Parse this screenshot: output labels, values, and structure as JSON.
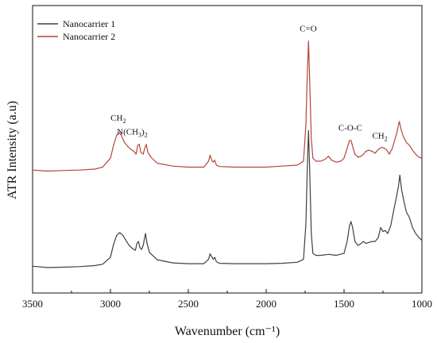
{
  "chart_data": {
    "type": "line",
    "title": "",
    "xlabel": "Wavenumber (cm⁻¹)",
    "ylabel": "ATR Intensity (a.u)",
    "xlim": [
      3500,
      1000
    ],
    "x_reversed": true,
    "xticks": [
      3500,
      3000,
      2500,
      2000,
      1500,
      1000
    ],
    "y_ticks_shown": false,
    "grid": false,
    "legend_position": "top-left",
    "series": [
      {
        "name": "Nanocarrier 1",
        "color": "#404040",
        "points": [
          [
            3500,
            0.135
          ],
          [
            3400,
            0.128
          ],
          [
            3300,
            0.13
          ],
          [
            3200,
            0.133
          ],
          [
            3100,
            0.138
          ],
          [
            3050,
            0.145
          ],
          [
            3000,
            0.18
          ],
          [
            2980,
            0.245
          ],
          [
            2960,
            0.29
          ],
          [
            2940,
            0.305
          ],
          [
            2920,
            0.29
          ],
          [
            2900,
            0.265
          ],
          [
            2880,
            0.24
          ],
          [
            2860,
            0.225
          ],
          [
            2840,
            0.215
          ],
          [
            2830,
            0.25
          ],
          [
            2820,
            0.26
          ],
          [
            2810,
            0.228
          ],
          [
            2800,
            0.22
          ],
          [
            2790,
            0.24
          ],
          [
            2775,
            0.3
          ],
          [
            2765,
            0.25
          ],
          [
            2750,
            0.205
          ],
          [
            2700,
            0.168
          ],
          [
            2600,
            0.152
          ],
          [
            2500,
            0.148
          ],
          [
            2400,
            0.148
          ],
          [
            2370,
            0.17
          ],
          [
            2360,
            0.198
          ],
          [
            2350,
            0.183
          ],
          [
            2340,
            0.17
          ],
          [
            2330,
            0.18
          ],
          [
            2320,
            0.158
          ],
          [
            2300,
            0.15
          ],
          [
            2200,
            0.148
          ],
          [
            2100,
            0.148
          ],
          [
            2000,
            0.148
          ],
          [
            1900,
            0.15
          ],
          [
            1800,
            0.155
          ],
          [
            1760,
            0.17
          ],
          [
            1745,
            0.35
          ],
          [
            1735,
            0.65
          ],
          [
            1728,
            0.82
          ],
          [
            1720,
            0.6
          ],
          [
            1710,
            0.3
          ],
          [
            1700,
            0.2
          ],
          [
            1680,
            0.19
          ],
          [
            1650,
            0.19
          ],
          [
            1600,
            0.195
          ],
          [
            1550,
            0.19
          ],
          [
            1500,
            0.2
          ],
          [
            1480,
            0.26
          ],
          [
            1465,
            0.34
          ],
          [
            1455,
            0.36
          ],
          [
            1445,
            0.33
          ],
          [
            1430,
            0.26
          ],
          [
            1410,
            0.24
          ],
          [
            1390,
            0.25
          ],
          [
            1375,
            0.26
          ],
          [
            1360,
            0.25
          ],
          [
            1340,
            0.255
          ],
          [
            1320,
            0.26
          ],
          [
            1300,
            0.26
          ],
          [
            1280,
            0.28
          ],
          [
            1265,
            0.33
          ],
          [
            1250,
            0.31
          ],
          [
            1235,
            0.315
          ],
          [
            1220,
            0.3
          ],
          [
            1200,
            0.34
          ],
          [
            1180,
            0.42
          ],
          [
            1165,
            0.48
          ],
          [
            1150,
            0.54
          ],
          [
            1142,
            0.595
          ],
          [
            1130,
            0.52
          ],
          [
            1115,
            0.46
          ],
          [
            1100,
            0.41
          ],
          [
            1080,
            0.38
          ],
          [
            1060,
            0.33
          ],
          [
            1040,
            0.3
          ],
          [
            1020,
            0.28
          ],
          [
            1000,
            0.265
          ]
        ]
      },
      {
        "name": "Nanocarrier 2",
        "color": "#b5453a",
        "points": [
          [
            3500,
            0.62
          ],
          [
            3400,
            0.615
          ],
          [
            3300,
            0.618
          ],
          [
            3200,
            0.62
          ],
          [
            3100,
            0.625
          ],
          [
            3050,
            0.635
          ],
          [
            3000,
            0.68
          ],
          [
            2980,
            0.745
          ],
          [
            2960,
            0.795
          ],
          [
            2945,
            0.81
          ],
          [
            2930,
            0.795
          ],
          [
            2910,
            0.76
          ],
          [
            2890,
            0.74
          ],
          [
            2870,
            0.725
          ],
          [
            2850,
            0.715
          ],
          [
            2835,
            0.7
          ],
          [
            2825,
            0.745
          ],
          [
            2815,
            0.75
          ],
          [
            2805,
            0.71
          ],
          [
            2790,
            0.7
          ],
          [
            2780,
            0.73
          ],
          [
            2770,
            0.75
          ],
          [
            2760,
            0.71
          ],
          [
            2740,
            0.685
          ],
          [
            2700,
            0.655
          ],
          [
            2600,
            0.64
          ],
          [
            2500,
            0.635
          ],
          [
            2400,
            0.635
          ],
          [
            2370,
            0.665
          ],
          [
            2360,
            0.695
          ],
          [
            2350,
            0.67
          ],
          [
            2340,
            0.66
          ],
          [
            2330,
            0.67
          ],
          [
            2320,
            0.645
          ],
          [
            2300,
            0.638
          ],
          [
            2200,
            0.635
          ],
          [
            2100,
            0.635
          ],
          [
            2000,
            0.635
          ],
          [
            1900,
            0.64
          ],
          [
            1800,
            0.645
          ],
          [
            1760,
            0.665
          ],
          [
            1745,
            0.85
          ],
          [
            1735,
            1.12
          ],
          [
            1728,
            1.27
          ],
          [
            1720,
            1.05
          ],
          [
            1710,
            0.78
          ],
          [
            1700,
            0.68
          ],
          [
            1680,
            0.665
          ],
          [
            1650,
            0.665
          ],
          [
            1620,
            0.675
          ],
          [
            1600,
            0.69
          ],
          [
            1580,
            0.67
          ],
          [
            1550,
            0.66
          ],
          [
            1520,
            0.665
          ],
          [
            1500,
            0.68
          ],
          [
            1480,
            0.73
          ],
          [
            1465,
            0.77
          ],
          [
            1455,
            0.77
          ],
          [
            1445,
            0.74
          ],
          [
            1430,
            0.7
          ],
          [
            1410,
            0.685
          ],
          [
            1390,
            0.69
          ],
          [
            1375,
            0.7
          ],
          [
            1360,
            0.715
          ],
          [
            1340,
            0.72
          ],
          [
            1320,
            0.715
          ],
          [
            1300,
            0.705
          ],
          [
            1285,
            0.72
          ],
          [
            1270,
            0.73
          ],
          [
            1255,
            0.735
          ],
          [
            1240,
            0.73
          ],
          [
            1225,
            0.72
          ],
          [
            1210,
            0.7
          ],
          [
            1190,
            0.73
          ],
          [
            1175,
            0.77
          ],
          [
            1160,
            0.81
          ],
          [
            1150,
            0.85
          ],
          [
            1145,
            0.865
          ],
          [
            1135,
            0.83
          ],
          [
            1120,
            0.79
          ],
          [
            1100,
            0.76
          ],
          [
            1080,
            0.745
          ],
          [
            1060,
            0.72
          ],
          [
            1040,
            0.7
          ],
          [
            1020,
            0.685
          ],
          [
            1000,
            0.68
          ]
        ]
      }
    ],
    "annotations": [
      {
        "base": "CH",
        "sub": "2",
        "after": "",
        "x": 2950,
        "y": 0.87
      },
      {
        "base": "N(CH",
        "sub": "3",
        "after": ")",
        "sub2": "2",
        "x": 2860,
        "y": 0.8
      },
      {
        "base": "C=O",
        "sub": "",
        "after": "",
        "x": 1730,
        "y": 1.32
      },
      {
        "base": "C-O-C",
        "sub": "",
        "after": "",
        "x": 1460,
        "y": 0.82
      },
      {
        "base": "CH",
        "sub": "2",
        "after": "",
        "x": 1270,
        "y": 0.78
      }
    ]
  }
}
